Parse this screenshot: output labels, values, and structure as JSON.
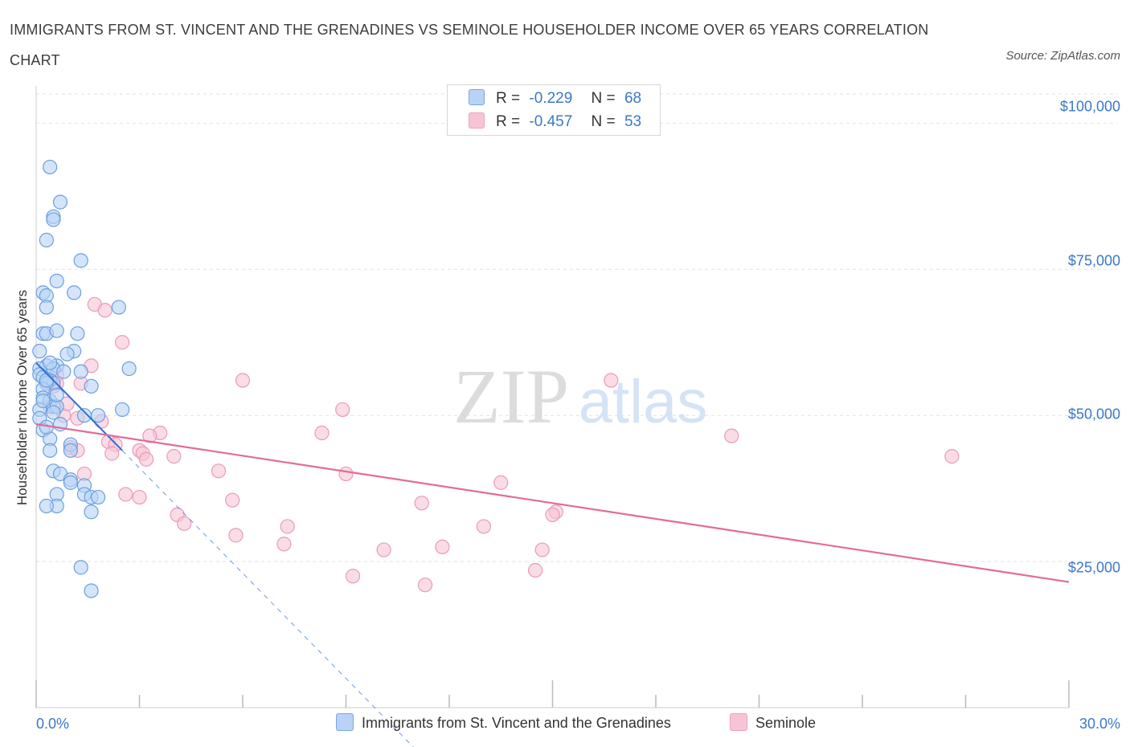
{
  "title": "IMMIGRANTS FROM ST. VINCENT AND THE GRENADINES VS SEMINOLE HOUSEHOLDER INCOME OVER 65 YEARS CORRELATION CHART",
  "source": "Source: ZipAtlas.com",
  "watermark": {
    "zip": "ZIP",
    "atlas": "atlas"
  },
  "colors": {
    "blue": "#3a78c8",
    "blue_fill": "#b8d3f5",
    "blue_line": "#2f6fd4",
    "pink": "#e36b9a",
    "pink_fill": "#f7c4d5"
  },
  "legend": {
    "rows": [
      {
        "r_label": "R =",
        "r_value": "-0.229",
        "n_label": "N =",
        "n_value": "68"
      },
      {
        "r_label": "R =",
        "r_value": "-0.457",
        "n_label": "N =",
        "n_value": "53"
      }
    ]
  },
  "series_legend": [
    {
      "name": "Immigrants from St. Vincent and the Grenadines"
    },
    {
      "name": "Seminole"
    }
  ],
  "chart_data": {
    "type": "scatter",
    "title": "IMMIGRANTS FROM ST. VINCENT AND THE GRENADINES VS SEMINOLE HOUSEHOLDER INCOME OVER 65 YEARS CORRELATION CHART",
    "xlabel": "",
    "ylabel": "Householder Income Over 65 years",
    "xlim": [
      0,
      30
    ],
    "ylim": [
      0,
      105000
    ],
    "x_tick_labels": [
      "0.0%",
      "30.0%"
    ],
    "y_tick_labels": [
      "$100,000",
      "$75,000",
      "$50,000",
      "$25,000"
    ],
    "y_ticks": [
      100000,
      75000,
      50000,
      25000
    ],
    "series": [
      {
        "name": "Immigrants from St. Vincent and the Grenadines",
        "r": -0.229,
        "n": 68,
        "trend": {
          "x0": 0.0,
          "y0": 59000,
          "x1": 2.5,
          "y1": 44000,
          "dashed_to_x": 11.0
        },
        "points": [
          [
            0.4,
            92500
          ],
          [
            0.7,
            86500
          ],
          [
            0.5,
            84000
          ],
          [
            0.5,
            83500
          ],
          [
            0.3,
            80000
          ],
          [
            1.3,
            76500
          ],
          [
            0.6,
            73000
          ],
          [
            1.1,
            71000
          ],
          [
            0.2,
            71000
          ],
          [
            0.3,
            70500
          ],
          [
            2.4,
            68500
          ],
          [
            0.3,
            68500
          ],
          [
            0.2,
            64000
          ],
          [
            0.3,
            64000
          ],
          [
            0.6,
            64500
          ],
          [
            1.2,
            64000
          ],
          [
            1.1,
            61000
          ],
          [
            0.9,
            60500
          ],
          [
            0.1,
            61000
          ],
          [
            0.6,
            58500
          ],
          [
            0.3,
            58500
          ],
          [
            0.1,
            58000
          ],
          [
            0.5,
            58000
          ],
          [
            1.3,
            57500
          ],
          [
            2.7,
            58000
          ],
          [
            0.1,
            57000
          ],
          [
            0.2,
            56500
          ],
          [
            0.4,
            56000
          ],
          [
            0.5,
            55500
          ],
          [
            0.3,
            55500
          ],
          [
            0.2,
            54500
          ],
          [
            1.6,
            55000
          ],
          [
            0.2,
            53000
          ],
          [
            0.4,
            52500
          ],
          [
            0.5,
            51500
          ],
          [
            0.6,
            51500
          ],
          [
            0.1,
            51000
          ],
          [
            0.5,
            50500
          ],
          [
            1.8,
            50000
          ],
          [
            2.5,
            51000
          ],
          [
            0.1,
            49500
          ],
          [
            1.4,
            50000
          ],
          [
            0.7,
            48500
          ],
          [
            0.2,
            47500
          ],
          [
            0.4,
            46000
          ],
          [
            1.0,
            45000
          ],
          [
            0.4,
            44000
          ],
          [
            1.0,
            44000
          ],
          [
            0.5,
            40500
          ],
          [
            0.7,
            40000
          ],
          [
            1.0,
            39000
          ],
          [
            1.0,
            38500
          ],
          [
            1.4,
            38000
          ],
          [
            0.6,
            36500
          ],
          [
            1.4,
            36500
          ],
          [
            1.6,
            36000
          ],
          [
            1.8,
            36000
          ],
          [
            0.6,
            34500
          ],
          [
            0.3,
            34500
          ],
          [
            1.6,
            33500
          ],
          [
            1.3,
            24000
          ],
          [
            1.6,
            20000
          ],
          [
            0.3,
            56000
          ],
          [
            0.6,
            53500
          ],
          [
            0.2,
            52500
          ],
          [
            0.4,
            59000
          ],
          [
            0.8,
            57500
          ],
          [
            0.3,
            48000
          ]
        ]
      },
      {
        "name": "Seminole",
        "r": -0.457,
        "n": 53,
        "trend": {
          "x0": 0.0,
          "y0": 48500,
          "x1": 30.0,
          "y1": 21500
        },
        "points": [
          [
            1.7,
            69000
          ],
          [
            2.0,
            68000
          ],
          [
            2.5,
            62500
          ],
          [
            1.6,
            58500
          ],
          [
            0.6,
            57000
          ],
          [
            0.3,
            56000
          ],
          [
            0.6,
            55500
          ],
          [
            1.3,
            55500
          ],
          [
            0.5,
            55000
          ],
          [
            0.4,
            51500
          ],
          [
            0.8,
            50000
          ],
          [
            1.2,
            49500
          ],
          [
            1.9,
            49000
          ],
          [
            3.6,
            47000
          ],
          [
            3.3,
            46500
          ],
          [
            2.1,
            45500
          ],
          [
            2.3,
            45000
          ],
          [
            3.0,
            44000
          ],
          [
            1.0,
            44500
          ],
          [
            1.2,
            44000
          ],
          [
            2.2,
            43500
          ],
          [
            3.1,
            43500
          ],
          [
            4.0,
            43000
          ],
          [
            3.2,
            42500
          ],
          [
            1.4,
            40000
          ],
          [
            5.3,
            40500
          ],
          [
            6.0,
            56000
          ],
          [
            8.9,
            51000
          ],
          [
            8.3,
            47000
          ],
          [
            9.0,
            40000
          ],
          [
            13.5,
            38500
          ],
          [
            16.7,
            56000
          ],
          [
            20.2,
            46500
          ],
          [
            26.6,
            43000
          ],
          [
            2.6,
            36500
          ],
          [
            3.0,
            36000
          ],
          [
            5.7,
            35500
          ],
          [
            11.2,
            35000
          ],
          [
            15.1,
            33500
          ],
          [
            4.1,
            33000
          ],
          [
            4.3,
            31500
          ],
          [
            7.3,
            31000
          ],
          [
            13.0,
            31000
          ],
          [
            5.8,
            29500
          ],
          [
            7.2,
            28000
          ],
          [
            10.1,
            27000
          ],
          [
            11.8,
            27500
          ],
          [
            14.7,
            27000
          ],
          [
            14.5,
            23500
          ],
          [
            9.2,
            22500
          ],
          [
            11.3,
            21000
          ],
          [
            15.0,
            33000
          ],
          [
            0.9,
            52000
          ]
        ]
      }
    ]
  }
}
